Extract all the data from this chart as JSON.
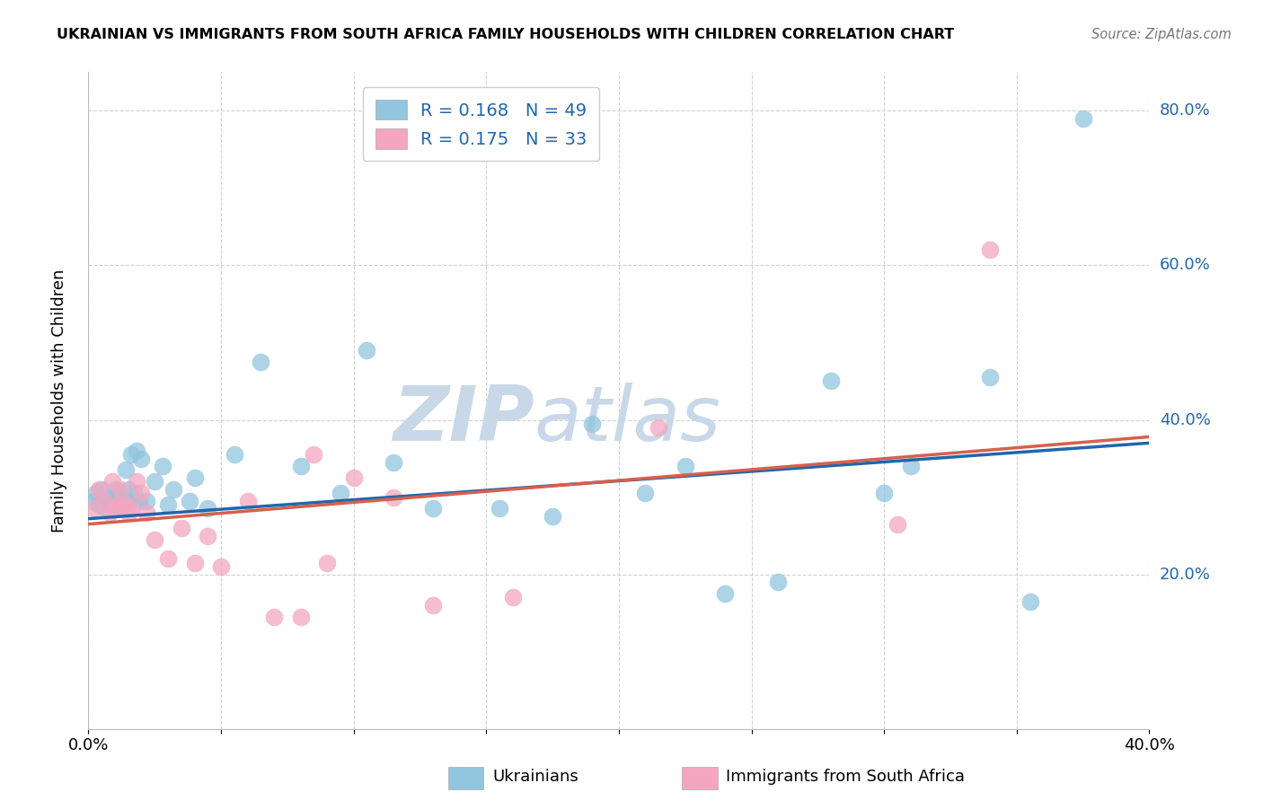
{
  "title": "UKRAINIAN VS IMMIGRANTS FROM SOUTH AFRICA FAMILY HOUSEHOLDS WITH CHILDREN CORRELATION CHART",
  "source": "Source: ZipAtlas.com",
  "ylabel": "Family Households with Children",
  "blue_color": "#92c5de",
  "pink_color": "#f4a6c0",
  "blue_line_color": "#2166ac",
  "pink_line_color": "#d6604d",
  "blue_r": 0.168,
  "blue_n": 49,
  "pink_r": 0.175,
  "pink_n": 33,
  "xlim": [
    0.0,
    0.4
  ],
  "ylim": [
    0.0,
    0.85
  ],
  "yticks": [
    0.0,
    0.2,
    0.4,
    0.6,
    0.8
  ],
  "ytick_labels": [
    "",
    "20.0%",
    "40.0%",
    "60.0%",
    "80.0%"
  ],
  "xticks": [
    0.0,
    0.05,
    0.1,
    0.15,
    0.2,
    0.25,
    0.3,
    0.35,
    0.4
  ],
  "xtick_labels": [
    "0.0%",
    "",
    "",
    "",
    "",
    "",
    "",
    "",
    "40.0%"
  ],
  "blue_points_x": [
    0.002,
    0.003,
    0.004,
    0.005,
    0.006,
    0.007,
    0.008,
    0.009,
    0.01,
    0.01,
    0.011,
    0.012,
    0.013,
    0.014,
    0.015,
    0.015,
    0.016,
    0.017,
    0.018,
    0.019,
    0.02,
    0.022,
    0.025,
    0.028,
    0.03,
    0.032,
    0.038,
    0.04,
    0.045,
    0.055,
    0.065,
    0.08,
    0.095,
    0.105,
    0.115,
    0.13,
    0.155,
    0.175,
    0.19,
    0.21,
    0.225,
    0.24,
    0.26,
    0.28,
    0.3,
    0.31,
    0.34,
    0.355,
    0.375
  ],
  "blue_points_y": [
    0.295,
    0.305,
    0.29,
    0.31,
    0.285,
    0.295,
    0.3,
    0.29,
    0.31,
    0.295,
    0.305,
    0.295,
    0.285,
    0.335,
    0.31,
    0.295,
    0.355,
    0.305,
    0.36,
    0.295,
    0.35,
    0.295,
    0.32,
    0.34,
    0.29,
    0.31,
    0.295,
    0.325,
    0.285,
    0.355,
    0.475,
    0.34,
    0.305,
    0.49,
    0.345,
    0.285,
    0.285,
    0.275,
    0.395,
    0.305,
    0.34,
    0.175,
    0.19,
    0.45,
    0.305,
    0.34,
    0.455,
    0.165,
    0.79
  ],
  "pink_points_x": [
    0.002,
    0.004,
    0.006,
    0.008,
    0.009,
    0.01,
    0.011,
    0.012,
    0.013,
    0.014,
    0.015,
    0.016,
    0.018,
    0.02,
    0.022,
    0.025,
    0.03,
    0.035,
    0.04,
    0.045,
    0.05,
    0.06,
    0.07,
    0.08,
    0.085,
    0.09,
    0.1,
    0.115,
    0.13,
    0.16,
    0.215,
    0.305,
    0.34
  ],
  "pink_points_y": [
    0.285,
    0.31,
    0.295,
    0.28,
    0.32,
    0.285,
    0.29,
    0.31,
    0.285,
    0.29,
    0.28,
    0.285,
    0.32,
    0.305,
    0.28,
    0.245,
    0.22,
    0.26,
    0.215,
    0.25,
    0.21,
    0.295,
    0.145,
    0.145,
    0.355,
    0.215,
    0.325,
    0.3,
    0.16,
    0.17,
    0.39,
    0.265,
    0.62
  ],
  "blue_trendline_start_y": 0.272,
  "blue_trendline_end_y": 0.37,
  "pink_trendline_start_y": 0.265,
  "pink_trendline_end_y": 0.378,
  "watermark_zip": "ZIP",
  "watermark_atlas": "atlas",
  "watermark_color": "#c8d8e8",
  "background_color": "#ffffff",
  "grid_color": "#cccccc",
  "legend_label_blue": "Ukrainians",
  "legend_label_pink": "Immigrants from South Africa"
}
